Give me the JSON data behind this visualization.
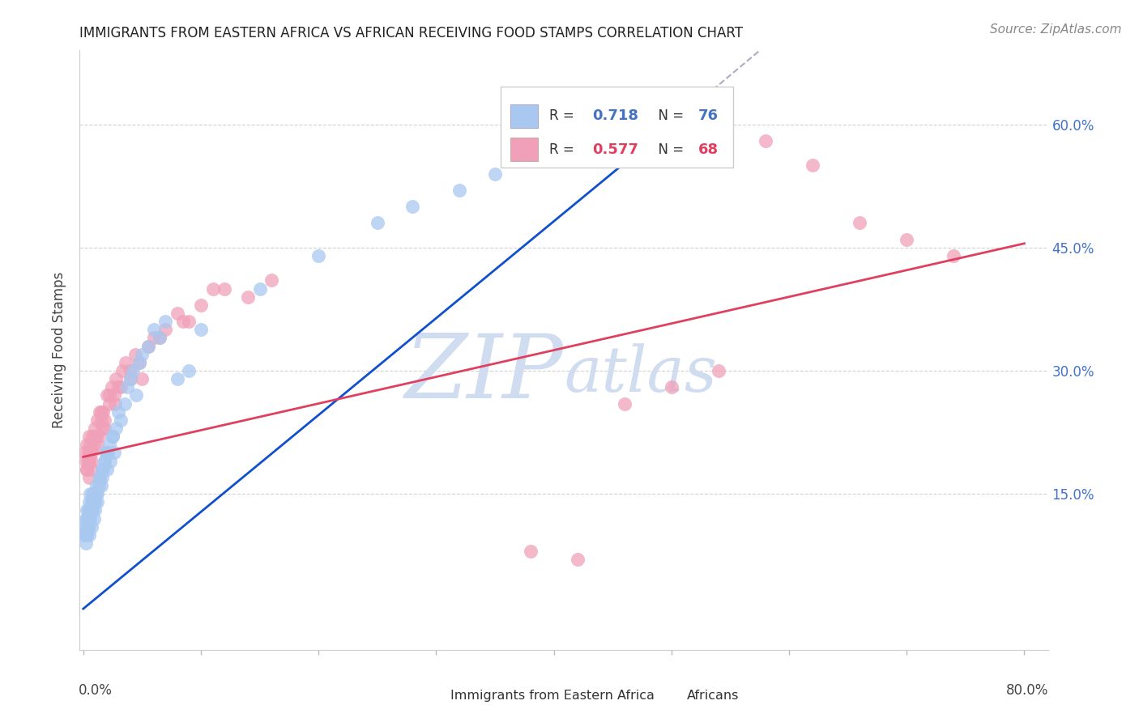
{
  "title": "IMMIGRANTS FROM EASTERN AFRICA VS AFRICAN RECEIVING FOOD STAMPS CORRELATION CHART",
  "source": "Source: ZipAtlas.com",
  "ylabel": "Receiving Food Stamps",
  "ytick_values": [
    0.15,
    0.3,
    0.45,
    0.6
  ],
  "ytick_labels": [
    "15.0%",
    "30.0%",
    "45.0%",
    "60.0%"
  ],
  "xlim": [
    -0.003,
    0.82
  ],
  "ylim": [
    -0.04,
    0.69
  ],
  "legend_r1": "0.718",
  "legend_n1": "76",
  "legend_r2": "0.577",
  "legend_n2": "68",
  "color_blue": "#A8C8F0",
  "color_pink": "#F0A0B8",
  "line_blue": "#1050CC",
  "line_pink": "#E04060",
  "watermark_color": "#D0DCF0",
  "grid_color": "#CCCCCC",
  "background_color": "#FFFFFF",
  "blue_line_x0": 0.0,
  "blue_line_y0": 0.01,
  "blue_line_x1": 0.5,
  "blue_line_y1": 0.6,
  "pink_line_x0": 0.0,
  "pink_line_y0": 0.195,
  "pink_line_x1": 0.8,
  "pink_line_y1": 0.455,
  "xtick_positions": [
    0.0,
    0.1,
    0.2,
    0.3,
    0.4,
    0.5,
    0.6,
    0.7,
    0.8
  ],
  "title_fontsize": 12,
  "source_fontsize": 11,
  "tick_label_fontsize": 12,
  "ylabel_fontsize": 12
}
